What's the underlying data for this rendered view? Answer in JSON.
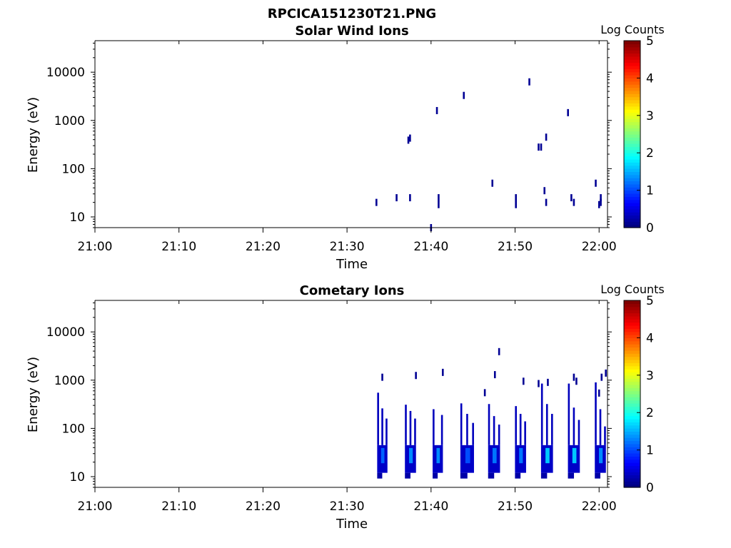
{
  "figure": {
    "title": "RPCICA151230T21.PNG",
    "background": "#ffffff"
  },
  "chart_data": [
    {
      "type": "heatmap",
      "title": "Solar Wind Ions",
      "xlabel": "Time",
      "ylabel": "Energy (eV)",
      "x_ticks": [
        "21:00",
        "21:10",
        "21:20",
        "21:30",
        "21:40",
        "21:50",
        "22:00"
      ],
      "x_tick_minutes": [
        0,
        10,
        20,
        30,
        40,
        50,
        60
      ],
      "xlim_minutes": [
        0,
        61
      ],
      "y_scale": "log",
      "y_ticks": [
        "10",
        "100",
        "1000",
        "10000"
      ],
      "y_tick_values": [
        10,
        100,
        1000,
        10000
      ],
      "ylim": [
        6,
        45000
      ],
      "colorbar": {
        "label": "Log Counts",
        "ticks": [
          "0",
          "1",
          "2",
          "3",
          "4",
          "5"
        ],
        "range": [
          0,
          5
        ],
        "colormap": "jet"
      },
      "cells": [
        {
          "t": 33.5,
          "e": 20,
          "v": 0.1
        },
        {
          "t": 35.9,
          "e": 25,
          "v": 0.1
        },
        {
          "t": 37.3,
          "e": 390,
          "v": 0.1
        },
        {
          "t": 37.5,
          "e": 430,
          "v": 0.1
        },
        {
          "t": 37.5,
          "e": 25,
          "v": 0.1
        },
        {
          "t": 40.0,
          "e": 6,
          "v": 0.1
        },
        {
          "t": 40.7,
          "e": 1600,
          "v": 0.1
        },
        {
          "t": 40.9,
          "e": 25,
          "v": 0.1
        },
        {
          "t": 40.9,
          "e": 18,
          "v": 0.1
        },
        {
          "t": 43.9,
          "e": 3300,
          "v": 0.1
        },
        {
          "t": 47.3,
          "e": 50,
          "v": 0.1
        },
        {
          "t": 50.1,
          "e": 25,
          "v": 0.1
        },
        {
          "t": 50.1,
          "e": 18,
          "v": 0.1
        },
        {
          "t": 51.7,
          "e": 6300,
          "v": 0.1
        },
        {
          "t": 52.8,
          "e": 280,
          "v": 0.1
        },
        {
          "t": 53.1,
          "e": 280,
          "v": 0.1
        },
        {
          "t": 53.5,
          "e": 35,
          "v": 0.1
        },
        {
          "t": 53.7,
          "e": 450,
          "v": 0.1
        },
        {
          "t": 53.7,
          "e": 20,
          "v": 0.1
        },
        {
          "t": 56.3,
          "e": 1450,
          "v": 0.1
        },
        {
          "t": 56.7,
          "e": 25,
          "v": 0.1
        },
        {
          "t": 57.0,
          "e": 20,
          "v": 0.1
        },
        {
          "t": 59.6,
          "e": 50,
          "v": 0.1
        },
        {
          "t": 60.2,
          "e": 25,
          "v": 0.1
        },
        {
          "t": 60.2,
          "e": 20,
          "v": 0.1
        },
        {
          "t": 60.0,
          "e": 18,
          "v": 0.1
        }
      ]
    },
    {
      "type": "heatmap",
      "title": "Cometary Ions",
      "xlabel": "Time",
      "ylabel": "Energy (eV)",
      "x_ticks": [
        "21:00",
        "21:10",
        "21:20",
        "21:30",
        "21:40",
        "21:50",
        "22:00"
      ],
      "x_tick_minutes": [
        0,
        10,
        20,
        30,
        40,
        50,
        60
      ],
      "xlim_minutes": [
        0,
        61
      ],
      "y_scale": "log",
      "y_ticks": [
        "10",
        "100",
        "1000",
        "10000"
      ],
      "y_tick_values": [
        10,
        100,
        1000,
        10000
      ],
      "ylim": [
        6,
        45000
      ],
      "colorbar": {
        "label": "Log Counts",
        "ticks": [
          "0",
          "1",
          "2",
          "3",
          "4",
          "5"
        ],
        "range": [
          0,
          5
        ],
        "colormap": "jet"
      },
      "bursts": [
        {
          "t": 33.7,
          "width": 1.0,
          "tops": [
            550,
            260,
            160
          ],
          "core_low": 12,
          "core_high": 45,
          "peak": 1.1
        },
        {
          "t": 37.0,
          "width": 1.1,
          "tops": [
            310,
            230,
            160
          ],
          "core_low": 12,
          "core_high": 45,
          "peak": 1.3
        },
        {
          "t": 40.3,
          "width": 1.0,
          "tops": [
            250,
            190
          ],
          "core_low": 12,
          "core_high": 45,
          "peak": 1.3
        },
        {
          "t": 43.6,
          "width": 1.4,
          "tops": [
            330,
            200,
            130
          ],
          "core_low": 12,
          "core_high": 45,
          "peak": 1.0
        },
        {
          "t": 46.9,
          "width": 1.2,
          "tops": [
            320,
            180,
            120
          ],
          "core_low": 12,
          "core_high": 45,
          "peak": 1.2
        },
        {
          "t": 50.1,
          "width": 1.1,
          "tops": [
            290,
            200,
            140
          ],
          "core_low": 12,
          "core_high": 45,
          "peak": 1.2
        },
        {
          "t": 53.2,
          "width": 1.2,
          "tops": [
            850,
            320,
            200
          ],
          "core_low": 12,
          "core_high": 45,
          "peak": 1.6
        },
        {
          "t": 56.4,
          "width": 1.2,
          "tops": [
            850,
            270,
            150
          ],
          "core_low": 12,
          "core_high": 45,
          "peak": 1.6
        },
        {
          "t": 59.6,
          "width": 1.1,
          "tops": [
            900,
            250,
            110
          ],
          "core_low": 12,
          "core_high": 45,
          "peak": 1.3
        }
      ],
      "cells": [
        {
          "t": 34.2,
          "e": 1150,
          "v": 0.1
        },
        {
          "t": 38.2,
          "e": 1250,
          "v": 0.1
        },
        {
          "t": 41.4,
          "e": 1450,
          "v": 0.1
        },
        {
          "t": 46.4,
          "e": 550,
          "v": 0.1
        },
        {
          "t": 47.6,
          "e": 1300,
          "v": 0.1
        },
        {
          "t": 48.1,
          "e": 3900,
          "v": 0.1
        },
        {
          "t": 51.0,
          "e": 950,
          "v": 0.1
        },
        {
          "t": 52.8,
          "e": 850,
          "v": 0.1
        },
        {
          "t": 53.9,
          "e": 900,
          "v": 0.1
        },
        {
          "t": 57.0,
          "e": 1150,
          "v": 0.1
        },
        {
          "t": 57.3,
          "e": 950,
          "v": 0.1
        },
        {
          "t": 60.3,
          "e": 1150,
          "v": 0.1
        },
        {
          "t": 60.8,
          "e": 1400,
          "v": 0.1
        },
        {
          "t": 60.0,
          "e": 540,
          "v": 0.1
        }
      ]
    }
  ]
}
